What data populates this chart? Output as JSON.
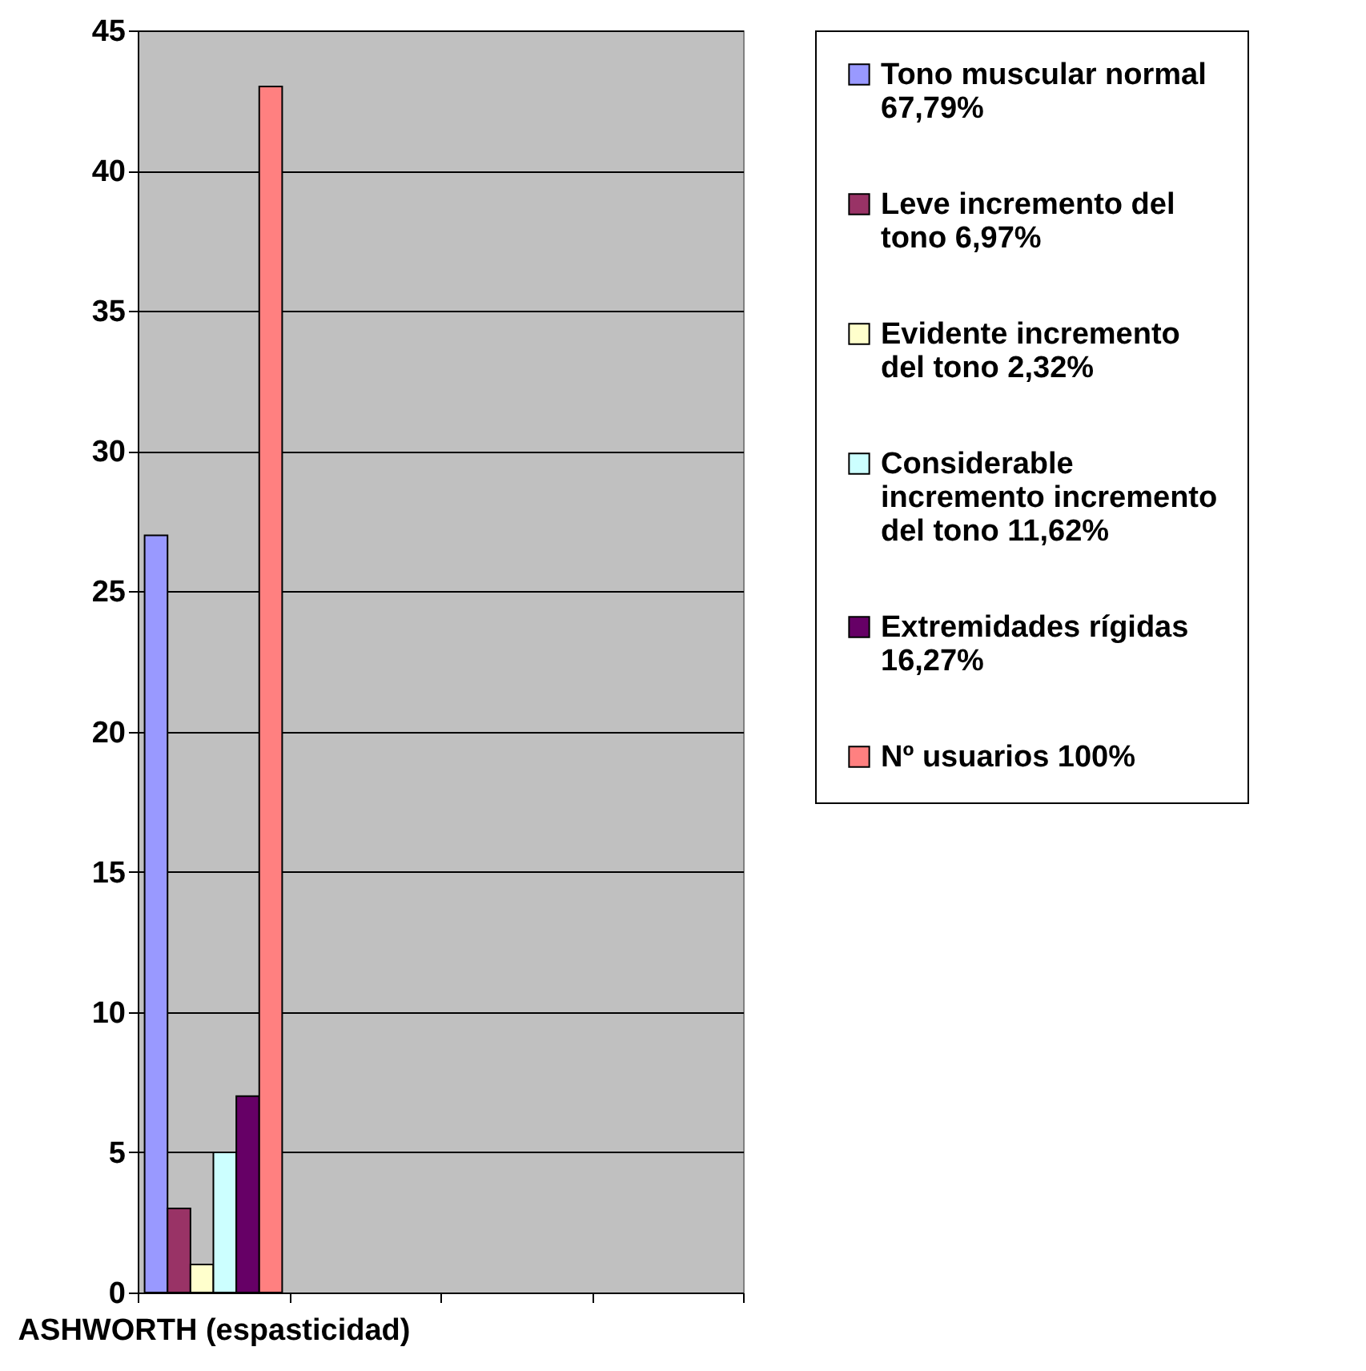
{
  "chart_data": {
    "type": "bar",
    "categories": [
      "ASHWORTH (espasticidad)",
      null,
      null,
      null
    ],
    "series": [
      {
        "name": "Tono muscular normal 67,79%",
        "color": "#9999ff",
        "values": [
          27,
          null,
          null,
          null
        ]
      },
      {
        "name": "Leve incremento del tono 6,97%",
        "color": "#993366",
        "values": [
          3,
          null,
          null,
          null
        ]
      },
      {
        "name": "Evidente incremento del tono 2,32%",
        "color": "#ffffcc",
        "values": [
          1,
          null,
          null,
          null
        ]
      },
      {
        "name": "Considerable incremento incremento del tono 11,62%",
        "color": "#ccffff",
        "values": [
          5,
          null,
          null,
          null
        ]
      },
      {
        "name": "Extremidades rígidas 16,27%",
        "color": "#660066",
        "values": [
          7,
          null,
          null,
          null
        ]
      },
      {
        "name": "Nº usuarios 100%",
        "color": "#ff8080",
        "values": [
          43,
          null,
          null,
          null
        ]
      }
    ],
    "ylim": [
      0,
      45
    ],
    "yticks": [
      0,
      5,
      10,
      15,
      20,
      25,
      30,
      35,
      40,
      45
    ],
    "grid": "y",
    "legend": "right"
  }
}
